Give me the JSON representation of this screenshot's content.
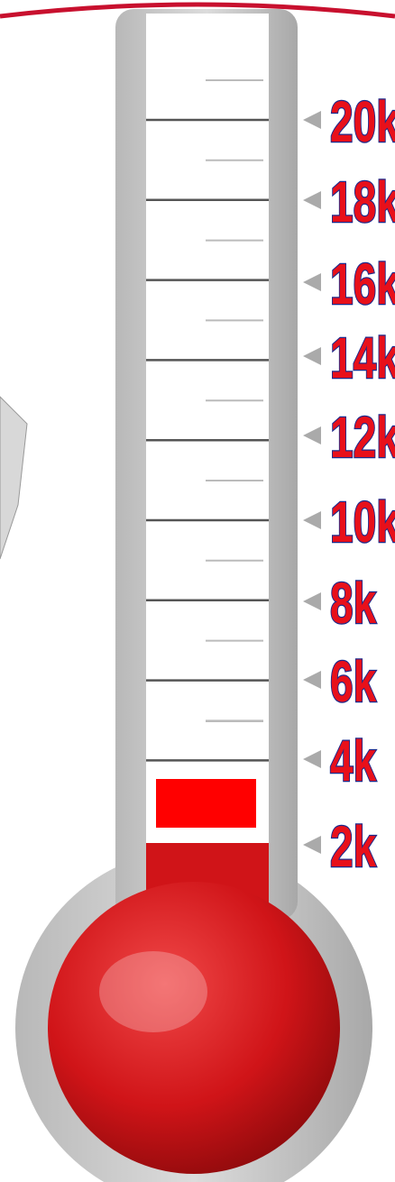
{
  "scale": {
    "labels": [
      "20k",
      "18k",
      "16k",
      "14k",
      "12k",
      "10k",
      "8k",
      "6k",
      "4k",
      "2k"
    ]
  }
}
